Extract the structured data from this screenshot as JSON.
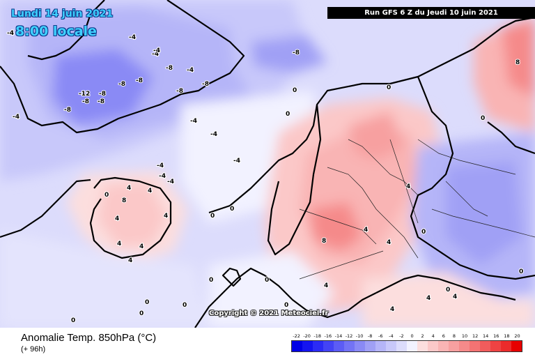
{
  "header": {
    "date": "Lundi 14 juin 2021",
    "time": "8:00 locale",
    "run": "Run GFS 6 Z du Jeudi 10 juin 2021"
  },
  "copyright": "Copyright © 2021 Meteociel.fr",
  "footer": {
    "field_title": "Anomalie Temp. 850hPa (°C)",
    "lead_time": "(+ 96h)"
  },
  "legend": {
    "ticks": [
      "-22",
      "-20",
      "-18",
      "-16",
      "-14",
      "-12",
      "-10",
      "-8",
      "-6",
      "-4",
      "-2",
      "0",
      "2",
      "4",
      "6",
      "8",
      "10",
      "12",
      "14",
      "16",
      "18",
      "20"
    ],
    "colors": [
      "#0000e6",
      "#1414f0",
      "#2b2bf5",
      "#4343f5",
      "#5c5cf5",
      "#7373f5",
      "#8a8af5",
      "#a0a0f5",
      "#b5b5f8",
      "#c8c8fa",
      "#dcdcfc",
      "#f2f2ff",
      "#fcdede",
      "#fbc8c8",
      "#f9b4b4",
      "#f7a0a0",
      "#f58a8a",
      "#f37373",
      "#f15c5c",
      "#ef4343",
      "#eb2b2b",
      "#e60000"
    ]
  },
  "contour_labels": [
    "-12",
    "-8",
    "-8",
    "-8",
    "-8",
    "-8",
    "-8",
    "-8",
    "-8",
    "-8",
    "-8",
    "-4",
    "-4",
    "-4",
    "-4",
    "-4",
    "-4",
    "-4",
    "-4",
    "-4",
    "-4",
    "-4",
    "-4",
    "0",
    "0",
    "0",
    "0",
    "0",
    "0",
    "0",
    "0",
    "0",
    "0",
    "0",
    "0",
    "0",
    "0",
    "0",
    "0",
    "0",
    "4",
    "4",
    "4",
    "4",
    "4",
    "4",
    "4",
    "4",
    "4",
    "4",
    "4",
    "4",
    "4",
    "4",
    "8",
    "8",
    "8"
  ]
}
